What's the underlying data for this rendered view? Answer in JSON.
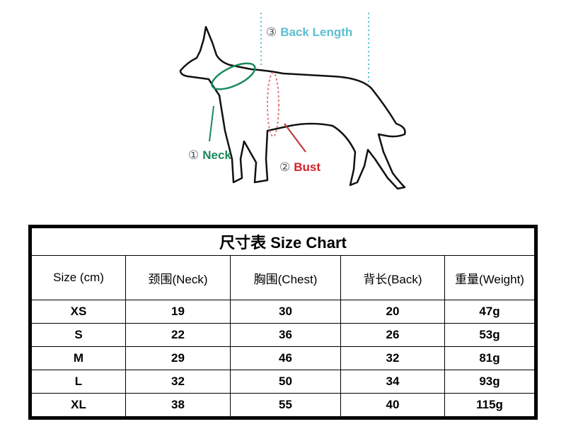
{
  "diagram": {
    "neck": {
      "num": "①",
      "label": "Neck",
      "color": "#1a8a5a"
    },
    "bust": {
      "num": "②",
      "label": "Bust",
      "color": "#d4202a"
    },
    "back": {
      "num": "③",
      "label": "Back Length",
      "color": "#5bbfd1"
    }
  },
  "table": {
    "title": "尺寸表 Size Chart",
    "headers": [
      "Size (cm)",
      "颈围(Neck)",
      "胸围(Chest)",
      "背长(Back)",
      "重量(Weight)"
    ],
    "rows": [
      [
        "XS",
        "19",
        "30",
        "20",
        "47g"
      ],
      [
        "S",
        "22",
        "36",
        "26",
        "53g"
      ],
      [
        "M",
        "29",
        "46",
        "32",
        "81g"
      ],
      [
        "L",
        "32",
        "50",
        "34",
        "93g"
      ],
      [
        "XL",
        "38",
        "55",
        "40",
        "115g"
      ]
    ]
  }
}
